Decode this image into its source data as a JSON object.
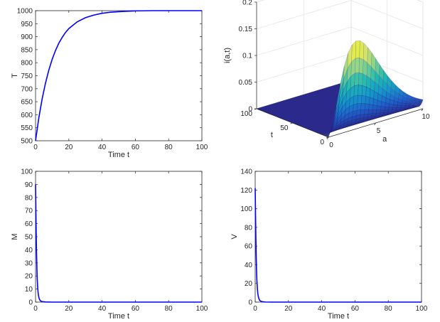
{
  "chart_data": [
    {
      "type": "line",
      "ylabel": "T",
      "xlabel": "Time t",
      "xlim": [
        0,
        100
      ],
      "ylim": [
        500,
        1000
      ],
      "xticks": [
        0,
        20,
        40,
        60,
        80,
        100
      ],
      "yticks": [
        500,
        550,
        600,
        650,
        700,
        750,
        800,
        850,
        900,
        950,
        1000
      ],
      "series": [
        {
          "x": [
            0,
            2,
            4,
            6,
            8,
            10,
            12,
            14,
            16,
            18,
            20,
            25,
            30,
            35,
            40,
            45,
            50,
            60,
            70,
            80,
            90,
            100
          ],
          "y": [
            500,
            589,
            662,
            722,
            772,
            813,
            847,
            875,
            897,
            916,
            931,
            957,
            973,
            983,
            990,
            994,
            996,
            999,
            1000,
            1000,
            1000,
            1000
          ],
          "color": "#0000ff"
        }
      ]
    },
    {
      "type": "surface",
      "zlabel": "i(a,t)",
      "xlabel": "a",
      "ylabel": "t",
      "alim": [
        0,
        10
      ],
      "tlim": [
        0,
        100
      ],
      "zlim": [
        0,
        0.2
      ],
      "aticks": [
        0,
        5,
        10
      ],
      "tticks": [
        0,
        50,
        100
      ],
      "zticks": [
        0,
        0.05,
        0.1,
        0.15,
        0.2
      ],
      "peak_value": 0.165,
      "peak_age": 3,
      "colormap": [
        "#2b2a8c",
        "#1f5fc9",
        "#1596c9",
        "#22b9b0",
        "#7fd18f",
        "#d8e46a",
        "#f9fb0e"
      ]
    },
    {
      "type": "line",
      "ylabel": "M",
      "xlabel": "Time t",
      "xlim": [
        0,
        100
      ],
      "ylim": [
        0,
        100
      ],
      "xticks": [
        0,
        20,
        40,
        60,
        80,
        100
      ],
      "yticks": [
        0,
        10,
        20,
        30,
        40,
        50,
        60,
        70,
        80,
        90,
        100
      ],
      "series": [
        {
          "x": [
            0,
            0.2,
            0.4,
            0.6,
            0.8,
            1.0,
            1.3,
            1.6,
            2.0,
            2.5,
            3.0,
            4,
            6,
            10,
            20,
            40,
            60,
            80,
            100
          ],
          "y": [
            90,
            70,
            52,
            38,
            27,
            18,
            11,
            6.5,
            3.5,
            1.8,
            0.9,
            0.4,
            0.1,
            0,
            0,
            0,
            0,
            0,
            0
          ],
          "color": "#0000ff"
        }
      ]
    },
    {
      "type": "line",
      "ylabel": "V",
      "xlabel": "Time t",
      "xlim": [
        0,
        100
      ],
      "ylim": [
        0,
        140
      ],
      "xticks": [
        0,
        20,
        40,
        60,
        80,
        100
      ],
      "yticks": [
        0,
        20,
        40,
        60,
        80,
        100,
        120,
        140
      ],
      "series": [
        {
          "x": [
            0,
            0.2,
            0.4,
            0.6,
            0.8,
            1.0,
            1.3,
            1.6,
            2.0,
            2.5,
            3.0,
            4,
            6,
            10,
            20,
            40,
            60,
            80,
            100
          ],
          "y": [
            122,
            95,
            70,
            50,
            35,
            24,
            15,
            9,
            5,
            2.5,
            1.3,
            0.5,
            0.1,
            0,
            0,
            0,
            0,
            0,
            0
          ],
          "color": "#0000ff"
        }
      ]
    }
  ]
}
